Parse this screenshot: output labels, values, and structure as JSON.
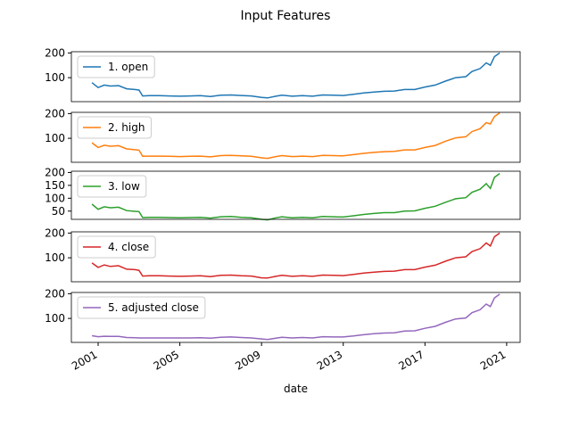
{
  "chart_data": [
    {
      "type": "line",
      "title": "Input Features",
      "x": [
        2000.7,
        2001.0,
        2001.3,
        2001.6,
        2002.0,
        2002.4,
        2002.8,
        2003.0,
        2003.18,
        2003.5,
        2004,
        2004.5,
        2005,
        2005.5,
        2006,
        2006.5,
        2007,
        2007.5,
        2008,
        2008.5,
        2009,
        2009.3,
        2009.7,
        2010,
        2010.5,
        2011,
        2011.5,
        2012,
        2012.5,
        2013,
        2013.5,
        2014,
        2014.5,
        2015,
        2015.5,
        2016,
        2016.5,
        2017,
        2017.5,
        2018,
        2018.5,
        2019,
        2019.3,
        2019.7,
        2020,
        2020.2,
        2020.4,
        2020.66
      ],
      "series": [
        {
          "name": "1. open",
          "color": "#1f77b4",
          "values": [
            80,
            60,
            70,
            66,
            68,
            55,
            52,
            50,
            26,
            27,
            27,
            26,
            25,
            26,
            27,
            24,
            29,
            30,
            28,
            26,
            20,
            18,
            25,
            29,
            25,
            27,
            25,
            30,
            29,
            28,
            33,
            38,
            42,
            45,
            46,
            52,
            52,
            62,
            70,
            86,
            100,
            104,
            125,
            137,
            160,
            150,
            185,
            200
          ]
        }
      ],
      "xlim": [
        1999.69,
        2021.66
      ],
      "ylim": [
        3,
        205
      ],
      "yticks": [
        100,
        200
      ],
      "legend": "upper left"
    },
    {
      "type": "line",
      "x": [
        2000.7,
        2001.0,
        2001.3,
        2001.6,
        2002.0,
        2002.4,
        2002.8,
        2003.0,
        2003.18,
        2003.5,
        2004,
        2004.5,
        2005,
        2005.5,
        2006,
        2006.5,
        2007,
        2007.5,
        2008,
        2008.5,
        2009,
        2009.3,
        2009.7,
        2010,
        2010.5,
        2011,
        2011.5,
        2012,
        2012.5,
        2013,
        2013.5,
        2014,
        2014.5,
        2015,
        2015.5,
        2016,
        2016.5,
        2017,
        2017.5,
        2018,
        2018.5,
        2019,
        2019.3,
        2019.7,
        2020,
        2020.2,
        2020.4,
        2020.66
      ],
      "series": [
        {
          "name": "2. high",
          "color": "#ff7f0e",
          "values": [
            82,
            63,
            72,
            68,
            70,
            57,
            54,
            52,
            27,
            28,
            28,
            27,
            26,
            27,
            28,
            25,
            30,
            31,
            29,
            27,
            21,
            19,
            26,
            30,
            26,
            28,
            26,
            31,
            30,
            29,
            34,
            39,
            43,
            46,
            47,
            53,
            53,
            63,
            71,
            88,
            102,
            106,
            127,
            139,
            163,
            158,
            188,
            203
          ]
        }
      ],
      "xlim": [
        1999.69,
        2021.66
      ],
      "ylim": [
        3,
        205
      ],
      "yticks": [
        100,
        200
      ],
      "legend": "upper left"
    },
    {
      "type": "line",
      "x": [
        2000.7,
        2001.0,
        2001.3,
        2001.6,
        2002.0,
        2002.4,
        2002.8,
        2003.0,
        2003.18,
        2003.5,
        2004,
        2004.5,
        2005,
        2005.5,
        2006,
        2006.5,
        2007,
        2007.5,
        2008,
        2008.5,
        2009,
        2009.3,
        2009.7,
        2010,
        2010.5,
        2011,
        2011.5,
        2012,
        2012.5,
        2013,
        2013.5,
        2014,
        2014.5,
        2015,
        2015.5,
        2016,
        2016.5,
        2017,
        2017.5,
        2018,
        2018.5,
        2019,
        2019.3,
        2019.7,
        2020,
        2020.2,
        2020.4,
        2020.66
      ],
      "series": [
        {
          "name": "3. low",
          "color": "#2ca02c",
          "values": [
            77,
            57,
            67,
            63,
            65,
            52,
            49,
            48,
            25,
            26,
            26,
            25,
            24,
            25,
            26,
            23,
            28,
            29,
            26,
            24,
            18,
            16,
            24,
            28,
            24,
            26,
            24,
            29,
            28,
            27,
            32,
            37,
            41,
            44,
            44,
            50,
            51,
            61,
            69,
            84,
            98,
            102,
            123,
            135,
            157,
            138,
            181,
            196
          ]
        }
      ],
      "xlim": [
        1999.69,
        2021.66
      ],
      "ylim": [
        18,
        205
      ],
      "yticks": [
        50,
        100,
        150,
        200
      ],
      "legend": "upper left"
    },
    {
      "type": "line",
      "x": [
        2000.7,
        2001.0,
        2001.3,
        2001.6,
        2002.0,
        2002.4,
        2002.8,
        2003.0,
        2003.18,
        2003.5,
        2004,
        2004.5,
        2005,
        2005.5,
        2006,
        2006.5,
        2007,
        2007.5,
        2008,
        2008.5,
        2009,
        2009.3,
        2009.7,
        2010,
        2010.5,
        2011,
        2011.5,
        2012,
        2012.5,
        2013,
        2013.5,
        2014,
        2014.5,
        2015,
        2015.5,
        2016,
        2016.5,
        2017,
        2017.5,
        2018,
        2018.5,
        2019,
        2019.3,
        2019.7,
        2020,
        2020.2,
        2020.4,
        2020.66
      ],
      "series": [
        {
          "name": "4. close",
          "color": "#d62728",
          "values": [
            79,
            61,
            71,
            65,
            68,
            54,
            52,
            49,
            26,
            27,
            27,
            26,
            25,
            26,
            27,
            24,
            29,
            30,
            27,
            26,
            19,
            18,
            25,
            29,
            25,
            27,
            25,
            30,
            29,
            28,
            33,
            38,
            42,
            45,
            46,
            52,
            52,
            62,
            70,
            86,
            100,
            104,
            125,
            137,
            160,
            148,
            185,
            200
          ]
        }
      ],
      "xlim": [
        1999.69,
        2021.66
      ],
      "ylim": [
        3,
        205
      ],
      "yticks": [
        100,
        200
      ],
      "legend": "upper left"
    },
    {
      "type": "line",
      "xlabel": "date",
      "x": [
        2000.7,
        2001.0,
        2001.3,
        2001.6,
        2002.0,
        2002.4,
        2002.8,
        2003.0,
        2003.18,
        2003.5,
        2004,
        2004.5,
        2005,
        2005.5,
        2006,
        2006.5,
        2007,
        2007.5,
        2008,
        2008.5,
        2009,
        2009.3,
        2009.7,
        2010,
        2010.5,
        2011,
        2011.5,
        2012,
        2012.5,
        2013,
        2013.5,
        2014,
        2014.5,
        2015,
        2015.5,
        2016,
        2016.5,
        2017,
        2017.5,
        2018,
        2018.5,
        2019,
        2019.3,
        2019.7,
        2020,
        2020.2,
        2020.4,
        2020.66
      ],
      "series": [
        {
          "name": "5. adjusted close",
          "color": "#9467bd",
          "values": [
            30,
            26,
            28,
            27,
            27,
            23,
            22,
            21,
            21,
            21,
            21,
            21,
            21,
            21,
            22,
            20,
            24,
            25,
            23,
            21,
            17,
            15,
            20,
            24,
            21,
            23,
            21,
            26,
            25,
            25,
            29,
            34,
            38,
            41,
            42,
            49,
            50,
            60,
            68,
            84,
            98,
            102,
            123,
            135,
            158,
            148,
            183,
            198
          ]
        }
      ],
      "xlim": [
        1999.69,
        2021.66
      ],
      "ylim": [
        3,
        205
      ],
      "yticks": [
        100,
        200
      ],
      "xticks": [
        2001,
        2005,
        2009,
        2013,
        2017,
        2021
      ],
      "legend": "upper left"
    }
  ]
}
